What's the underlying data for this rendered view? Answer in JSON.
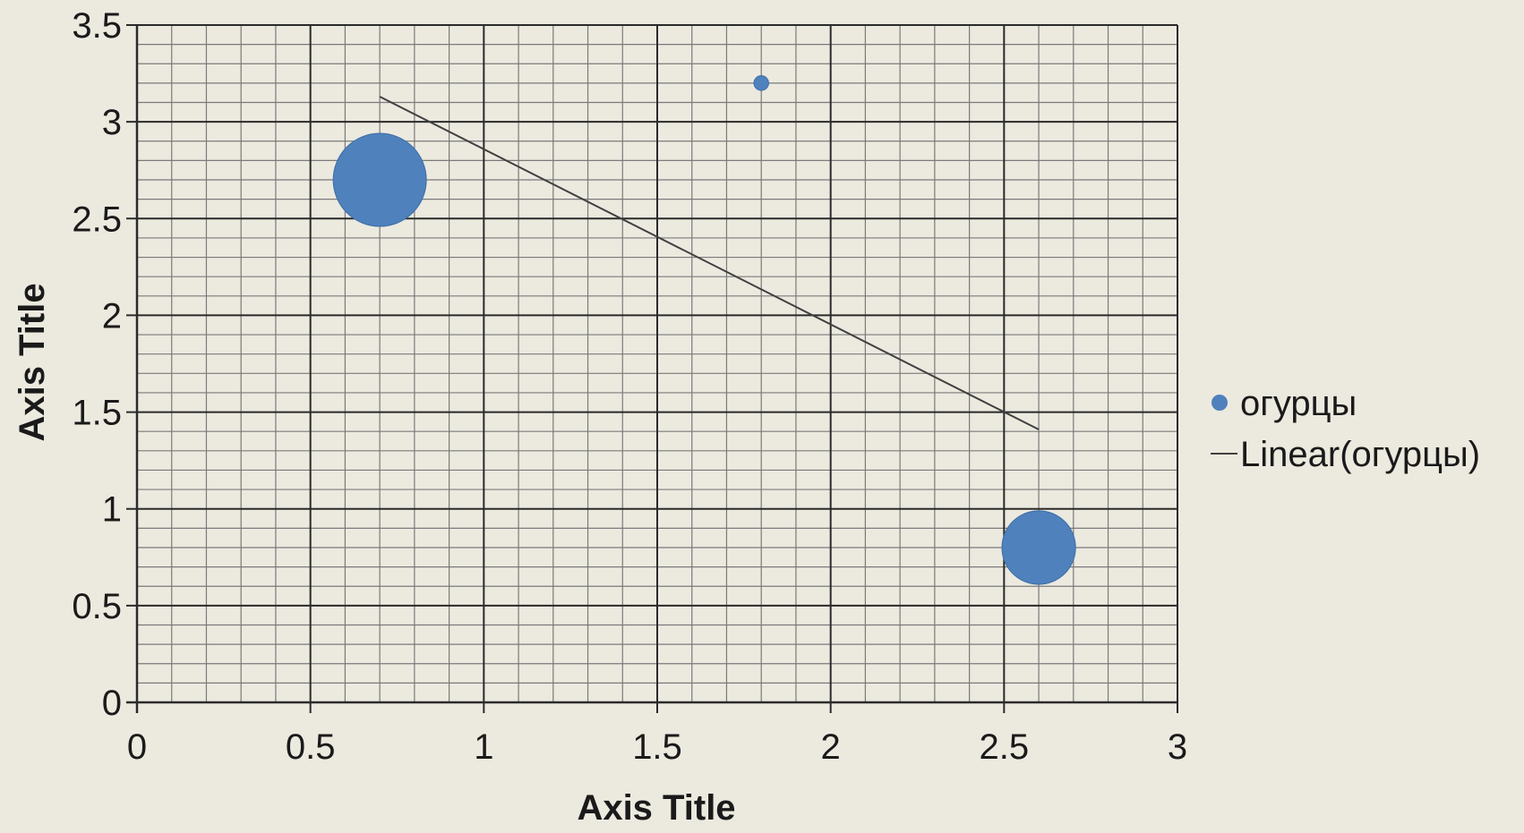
{
  "chart_data": {
    "type": "scatter",
    "subtype": "bubble",
    "title": "",
    "xlabel": "Axis Title",
    "ylabel": "Axis Title",
    "xlim": [
      0,
      3
    ],
    "ylim": [
      0,
      3.5
    ],
    "x_ticks": [
      0,
      0.5,
      1,
      1.5,
      2,
      2.5,
      3
    ],
    "x_tick_labels": [
      "0",
      "0.5",
      "1",
      "1.5",
      "2",
      "2.5",
      "3"
    ],
    "y_ticks": [
      0,
      0.5,
      1,
      1.5,
      2,
      2.5,
      3,
      3.5
    ],
    "y_tick_labels": [
      "0",
      "0.5",
      "1",
      "1.5",
      "2",
      "2.5",
      "3",
      "3.5"
    ],
    "grid": {
      "major": true,
      "minor": true,
      "x_minor_step": 0.1,
      "y_minor_step": 0.1
    },
    "legend_position": "right",
    "series": [
      {
        "name": "огурцы",
        "color": "#4f81bd",
        "points": [
          {
            "x": 0.7,
            "y": 2.7,
            "size": 40
          },
          {
            "x": 1.8,
            "y": 3.2,
            "size": 1
          },
          {
            "x": 2.6,
            "y": 0.8,
            "size": 25
          }
        ]
      }
    ],
    "trendline": {
      "name": "Linear(огурцы)",
      "type": "linear",
      "color": "#404040",
      "x_start": 0.7,
      "y_start": 3.13,
      "x_end": 2.6,
      "y_end": 1.41
    }
  }
}
